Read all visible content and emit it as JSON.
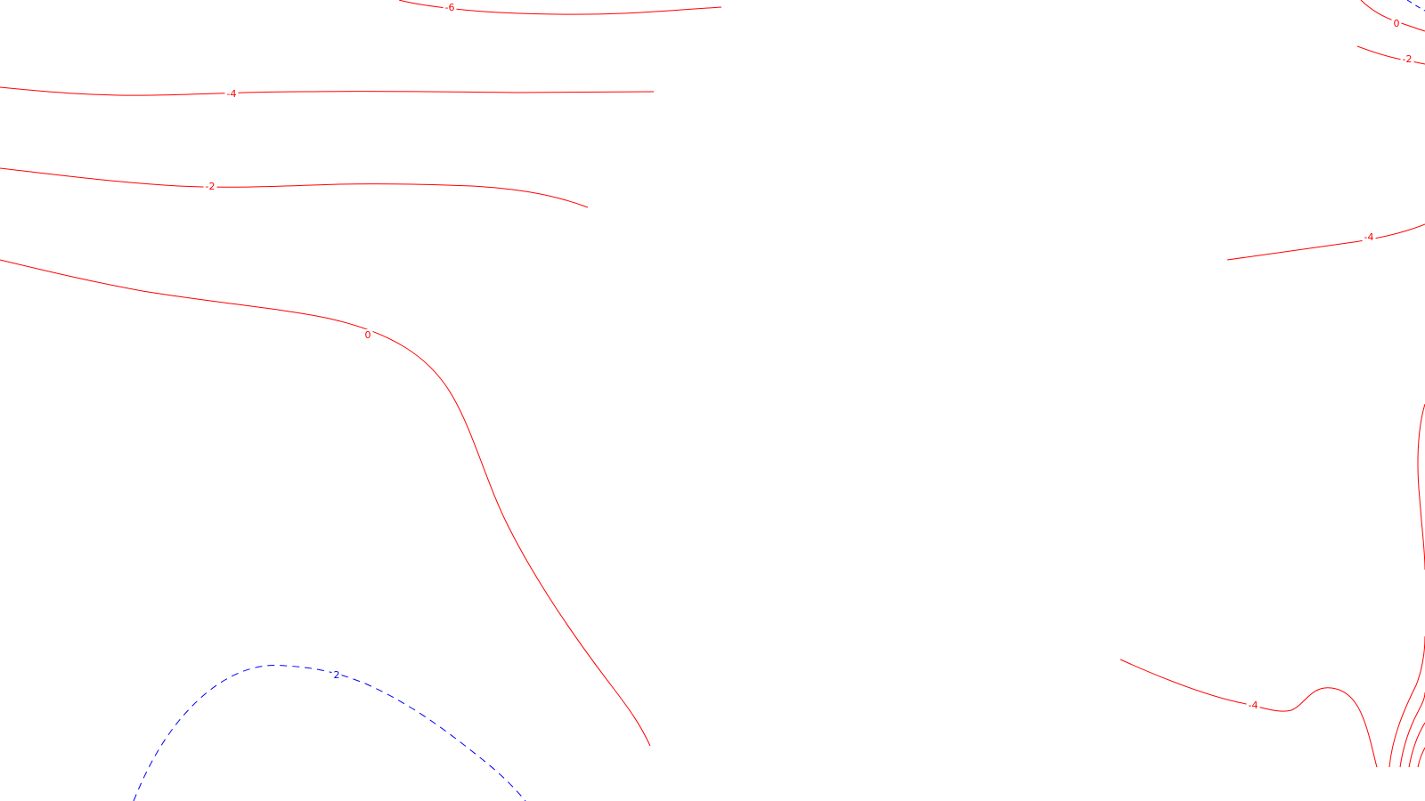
{
  "chart_data": {
    "type": "contour",
    "colors": {
      "positive": "#ff0000",
      "negative": "#0000ff",
      "background": "#ffffff"
    },
    "grid": false,
    "legend": "none",
    "contours": [
      {
        "id": "top-6",
        "level": -6,
        "label": "-6",
        "style": "solid",
        "color": "#ff0000"
      },
      {
        "id": "upper-4",
        "level": -4,
        "label": "-4",
        "style": "solid",
        "color": "#ff0000"
      },
      {
        "id": "upper-2",
        "level": -2,
        "label": "-2",
        "style": "solid",
        "color": "#ff0000"
      },
      {
        "id": "left-0",
        "level": 0,
        "label": "0",
        "style": "solid",
        "color": "#ff0000"
      },
      {
        "id": "bottom-dash-2",
        "level": 2,
        "label": "2",
        "style": "dashed",
        "color": "#0000ff"
      },
      {
        "id": "tr-0",
        "level": 0,
        "label": "0",
        "style": "solid",
        "color": "#ff0000"
      },
      {
        "id": "tr-2",
        "level": -2,
        "label": "-2",
        "style": "solid",
        "color": "#ff0000"
      },
      {
        "id": "tr-dash",
        "level": 2,
        "label": "",
        "style": "dashed",
        "color": "#0000ff"
      },
      {
        "id": "right-4",
        "level": -4,
        "label": "-4",
        "style": "solid",
        "color": "#ff0000"
      },
      {
        "id": "bottom-right-4",
        "level": -4,
        "label": "-4",
        "style": "solid",
        "color": "#ff0000"
      },
      {
        "id": "right-edge",
        "level": null,
        "label": "",
        "style": "solid",
        "color": "#ff0000"
      },
      {
        "id": "br-fan-1",
        "level": null,
        "label": "",
        "style": "solid",
        "color": "#ff0000"
      },
      {
        "id": "br-fan-2",
        "level": null,
        "label": "",
        "style": "solid",
        "color": "#ff0000"
      },
      {
        "id": "br-fan-3",
        "level": null,
        "label": "",
        "style": "solid",
        "color": "#ff0000"
      },
      {
        "id": "br-fan-4",
        "level": null,
        "label": "",
        "style": "solid",
        "color": "#ff0000"
      }
    ]
  }
}
